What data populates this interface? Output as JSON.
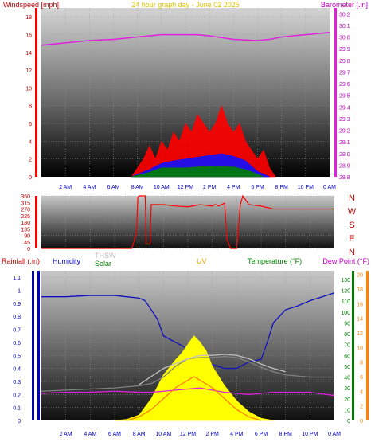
{
  "chart_data": [
    {
      "type": "line",
      "name": "wind-barometer",
      "title": "24 hour graph day - June 02 2025",
      "ylabel_left": "Windspeed [mph]",
      "ylabel_right": "Barometer [.in]",
      "ylim_left": [
        0,
        19
      ],
      "ylim_right": [
        28.8,
        30.25
      ],
      "yticks_left": [
        0,
        2,
        4,
        6,
        8,
        10,
        12,
        14,
        16,
        18
      ],
      "yticks_right": [
        28.8,
        28.9,
        29.0,
        29.1,
        29.2,
        29.3,
        29.4,
        29.5,
        29.6,
        29.7,
        29.8,
        29.9,
        30.0,
        30.1,
        30.2
      ],
      "x_hours": [
        0,
        24
      ],
      "xticks": [
        "2 AM",
        "4 AM",
        "6 AM",
        "8 AM",
        "10 AM",
        "12 PM",
        "2 PM",
        "4 PM",
        "6 PM",
        "8 PM",
        "10 PM",
        "0 AM"
      ],
      "series": [
        {
          "name": "Barometer",
          "axis": "right",
          "color": "#e020e0",
          "x": [
            0,
            2,
            4,
            6,
            8,
            10,
            12,
            13,
            14,
            16,
            18,
            19,
            20,
            22,
            24
          ],
          "y": [
            29.93,
            29.95,
            29.97,
            29.98,
            30.0,
            30.02,
            30.02,
            30.02,
            30.01,
            29.98,
            29.97,
            29.98,
            30.0,
            30.02,
            30.04
          ]
        },
        {
          "name": "Wind gust",
          "axis": "left",
          "color": "#ff0000",
          "x": [
            7.5,
            8,
            8.5,
            9,
            9.5,
            10,
            10.5,
            11,
            11.5,
            12,
            12.5,
            13,
            13.5,
            14,
            14.5,
            15,
            15.5,
            16,
            16.5,
            17,
            17.5,
            18,
            18.5,
            19,
            19.5
          ],
          "y": [
            0,
            1,
            2,
            3.5,
            2,
            4,
            3,
            5,
            4,
            6,
            5,
            7,
            6,
            5,
            6,
            8,
            6,
            5,
            6,
            4,
            3,
            2,
            3,
            1,
            0
          ]
        },
        {
          "name": "Wind speed",
          "axis": "left",
          "color": "#1010ff",
          "x": [
            7.5,
            8,
            9,
            9.5,
            10,
            11,
            12,
            13,
            14,
            15,
            16,
            17,
            17.5,
            18,
            19
          ],
          "y": [
            0,
            0.3,
            0.8,
            1.2,
            1.5,
            1.8,
            2,
            2.2,
            2.4,
            2.6,
            2.3,
            1.8,
            1.2,
            0.6,
            0
          ]
        },
        {
          "name": "Wind avg",
          "axis": "left",
          "color": "#008000",
          "x": [
            7.5,
            9,
            10,
            12,
            14,
            16,
            17,
            18,
            18.5
          ],
          "y": [
            0,
            0.5,
            1,
            1,
            1.2,
            1.1,
            0.8,
            0.3,
            0
          ]
        }
      ]
    },
    {
      "type": "line",
      "name": "wind-direction",
      "ylim": [
        0,
        360
      ],
      "yticks": [
        0,
        45,
        90,
        135,
        180,
        225,
        270,
        315,
        360
      ],
      "compass": [
        "N",
        "W",
        "S",
        "E",
        "N"
      ],
      "x_hours": [
        0,
        24
      ],
      "series": [
        {
          "name": "Direction",
          "color": "#ff0000",
          "x": [
            0,
            7.4,
            7.6,
            7.8,
            7.9,
            8.0,
            8.1,
            8.5,
            8.6,
            8.9,
            9.0,
            10,
            11,
            12,
            13,
            14,
            14.2,
            14.3,
            14.5,
            15,
            15.2,
            15.5,
            15.6,
            16,
            16.3,
            16.5,
            17,
            18,
            19,
            24
          ],
          "y": [
            0,
            0,
            50,
            120,
            350,
            360,
            360,
            360,
            30,
            30,
            300,
            300,
            290,
            285,
            300,
            290,
            300,
            300,
            290,
            310,
            60,
            0,
            0,
            0,
            300,
            360,
            300,
            290,
            270,
            270
          ]
        }
      ]
    },
    {
      "type": "line",
      "name": "weather-bottom",
      "ylabel_rain": "Rainfall (.in)",
      "ylabel_humidity": "Humidity",
      "label_thsw": "THSW",
      "label_solar": "Solar",
      "label_uv": "UV",
      "ylabel_temp": "Temperature (°F)",
      "ylabel_dew": "Dew Point (°F)",
      "ylim_rain": [
        0,
        1.15
      ],
      "yticks_rain": [
        0,
        0.1,
        0.2,
        0.3,
        0.4,
        0.5,
        0.6,
        0.7,
        0.8,
        0.9,
        1,
        1.1
      ],
      "ylim_temp": [
        0,
        138
      ],
      "yticks_temp": [
        0,
        10,
        20,
        30,
        40,
        50,
        60,
        70,
        80,
        90,
        100,
        110,
        120,
        130
      ],
      "ylim_uv": [
        0,
        20.5
      ],
      "yticks_uv": [
        0,
        2,
        4,
        6,
        8,
        10,
        12,
        14,
        16,
        18,
        20
      ],
      "x_hours": [
        0,
        24
      ],
      "xticks": [
        "2 AM",
        "4 AM",
        "6 AM",
        "8 AM",
        "10 AM",
        "12 PM",
        "2 PM",
        "4 PM",
        "6 PM",
        "8 PM",
        "10 PM",
        "0 AM"
      ],
      "series": [
        {
          "name": "Humidity",
          "axis": "rain",
          "color": "#1010c0",
          "x": [
            0,
            2,
            4,
            6,
            7,
            8,
            8.5,
            9,
            9.5,
            10,
            11,
            12,
            13,
            14,
            15,
            16,
            17,
            18,
            18.5,
            19,
            20,
            21,
            22,
            23,
            24
          ],
          "y": [
            0.95,
            0.95,
            0.96,
            0.96,
            0.95,
            0.94,
            0.92,
            0.85,
            0.78,
            0.65,
            0.6,
            0.55,
            0.45,
            0.43,
            0.4,
            0.4,
            0.45,
            0.47,
            0.6,
            0.75,
            0.85,
            0.88,
            0.92,
            0.95,
            0.98
          ]
        },
        {
          "name": "Solar",
          "axis": "temp",
          "color": "#ffff00",
          "fill": true,
          "x": [
            6,
            7,
            8,
            9,
            10,
            11,
            11.5,
            12,
            12.5,
            13,
            13.5,
            14,
            15,
            16,
            17,
            18,
            19
          ],
          "y": [
            0,
            1,
            5,
            20,
            42,
            56,
            62,
            70,
            78,
            72,
            64,
            50,
            32,
            18,
            8,
            2,
            0
          ]
        },
        {
          "name": "Temperature",
          "axis": "temp",
          "color": "#808080",
          "x": [
            0,
            2,
            4,
            6,
            8,
            9,
            10,
            11,
            12,
            13,
            14,
            15,
            16,
            17,
            18,
            19,
            20,
            22,
            24
          ],
          "y": [
            27,
            28,
            29,
            30,
            32,
            34,
            40,
            50,
            57,
            58,
            58,
            59,
            58,
            54,
            49,
            45,
            42,
            40,
            40
          ]
        },
        {
          "name": "THSW",
          "axis": "temp",
          "color": "#c0c0c0",
          "x": [
            8,
            10,
            12,
            13,
            14,
            15,
            16,
            17,
            18,
            19,
            20
          ],
          "y": [
            33,
            48,
            57,
            60,
            60,
            61,
            60,
            57,
            52,
            48,
            45
          ]
        },
        {
          "name": "Dew Point",
          "axis": "temp",
          "color": "#e020e0",
          "x": [
            0,
            2,
            4,
            6,
            8,
            9,
            10,
            11,
            12,
            13,
            14,
            15,
            16,
            17,
            18,
            19,
            20,
            22,
            24
          ],
          "y": [
            25,
            26,
            26,
            27,
            26,
            26,
            27,
            28,
            29,
            30,
            28,
            26,
            25,
            24,
            25,
            26,
            26,
            26,
            23
          ]
        },
        {
          "name": "UV",
          "axis": "uv",
          "color": "#ff8000",
          "x": [
            7,
            8,
            9,
            10,
            11,
            12,
            12.5,
            13,
            14,
            15,
            16,
            17,
            18
          ],
          "y": [
            0,
            0.5,
            1.5,
            3,
            4.5,
            5.5,
            6,
            5.5,
            4.5,
            3,
            1.5,
            0.5,
            0
          ]
        }
      ]
    }
  ]
}
